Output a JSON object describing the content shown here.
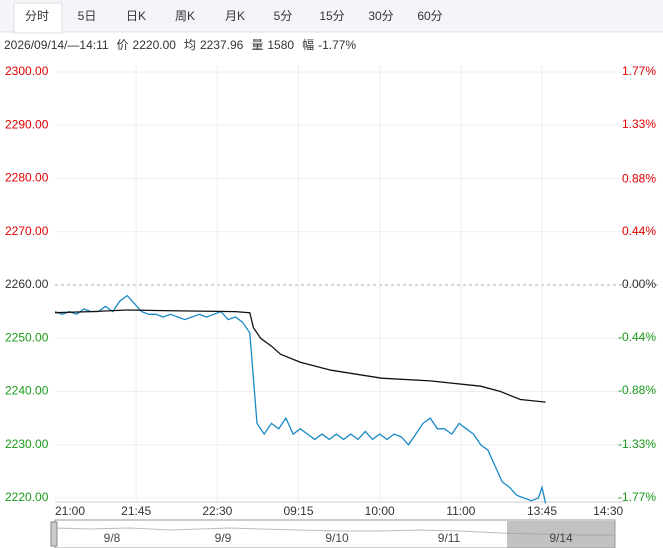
{
  "tabs": {
    "items": [
      "分时",
      "5日",
      "日K",
      "周K",
      "月K",
      "5分",
      "15分",
      "30分",
      "60分"
    ],
    "active": 0
  },
  "info": {
    "time": "2026/09/14/—14:11",
    "price_label": "价",
    "price": "2220.00",
    "avg_label": "均",
    "avg": "2237.96",
    "vol_label": "量",
    "vol": "1580",
    "range_label": "幅",
    "range": "-1.77%"
  },
  "chart_data": {
    "type": "line",
    "xlim": [
      0,
      316
    ],
    "xticks": [
      {
        "value": 0,
        "label": "21:00"
      },
      {
        "value": 45,
        "label": "21:45"
      },
      {
        "value": 90,
        "label": "22:30"
      },
      {
        "value": 135,
        "label": "09:15"
      },
      {
        "value": 180,
        "label": "10:00"
      },
      {
        "value": 225,
        "label": "11:00"
      },
      {
        "value": 270,
        "label": "13:45"
      },
      {
        "value": 315,
        "label": "14:30"
      }
    ],
    "ylim": [
      2220,
      2300
    ],
    "yticks": [
      {
        "value": 2300,
        "label": "2300.00"
      },
      {
        "value": 2290,
        "label": "2290.00"
      },
      {
        "value": 2280,
        "label": "2280.00"
      },
      {
        "value": 2270,
        "label": "2270.00"
      },
      {
        "value": 2260,
        "label": "2260.00"
      },
      {
        "value": 2250,
        "label": "2250.00"
      },
      {
        "value": 2240,
        "label": "2240.00"
      },
      {
        "value": 2230,
        "label": "2230.00"
      },
      {
        "value": 2220,
        "label": "2220.00"
      }
    ],
    "y2lim": [
      -1.77,
      1.77
    ],
    "y2ticks": [
      {
        "value": 1.77,
        "label": "1.77%"
      },
      {
        "value": 1.33,
        "label": "1.33%"
      },
      {
        "value": 0.88,
        "label": "0.88%"
      },
      {
        "value": 0.44,
        "label": "0.44%"
      },
      {
        "value": 0,
        "label": "0.00%"
      },
      {
        "value": -0.44,
        "label": "-0.44%"
      },
      {
        "value": -0.88,
        "label": "-0.88%"
      },
      {
        "value": -1.33,
        "label": "-1.33%"
      },
      {
        "value": -1.77,
        "label": "-1.77%"
      }
    ],
    "grid": true,
    "up_color": "#e00000",
    "down_color": "#1a9a1a",
    "flat_color": "#333333",
    "series": [
      {
        "color": "#1a8ac6",
        "x": [
          0,
          4,
          8,
          12,
          16,
          20,
          24,
          28,
          32,
          36,
          40,
          44,
          48,
          52,
          56,
          60,
          64,
          68,
          72,
          76,
          80,
          84,
          88,
          92,
          96,
          100,
          104,
          108,
          112,
          116,
          120,
          124,
          128,
          132,
          136,
          140,
          144,
          148,
          152,
          156,
          160,
          164,
          168,
          172,
          176,
          180,
          184,
          188,
          192,
          196,
          200,
          204,
          208,
          212,
          216,
          220,
          224,
          228,
          232,
          236,
          240,
          244,
          248,
          252,
          256,
          260,
          264,
          268,
          270,
          272
        ],
        "values": [
          2255,
          2254.5,
          2255,
          2254.5,
          2255.5,
          2255,
          2255,
          2256,
          2255,
          2257,
          2258,
          2256.5,
          2255,
          2254.5,
          2254.5,
          2254,
          2254.5,
          2254,
          2253.5,
          2254,
          2254.5,
          2254,
          2254.5,
          2255,
          2253.5,
          2254,
          2253,
          2251,
          2234,
          2232,
          2234,
          2233,
          2235,
          2232,
          2233,
          2232,
          2231,
          2232,
          2231,
          2232,
          2231,
          2232,
          2231,
          2232.5,
          2231,
          2232,
          2231,
          2232,
          2231.5,
          2230,
          2232,
          2234,
          2235,
          2233,
          2233,
          2232,
          2234,
          2233,
          2232,
          2230,
          2229,
          2226,
          2223,
          2222,
          2220.5,
          2220,
          2219.5,
          2220,
          2222,
          2219
        ]
      },
      {
        "color": "#111111",
        "x": [
          0,
          20,
          40,
          60,
          80,
          100,
          108,
          110,
          114,
          120,
          125,
          136,
          153,
          181,
          208,
          236,
          247,
          258,
          272
        ],
        "values": [
          2254.8,
          2255,
          2255.3,
          2255.2,
          2255.1,
          2255,
          2254.8,
          2252,
          2250,
          2248.5,
          2247,
          2245.5,
          2244,
          2242.5,
          2242,
          2241,
          2240,
          2238.5,
          2238
        ]
      }
    ]
  },
  "navigator": {
    "labels": [
      "9/8",
      "9/9",
      "9/10",
      "9/11",
      "9/14"
    ]
  }
}
